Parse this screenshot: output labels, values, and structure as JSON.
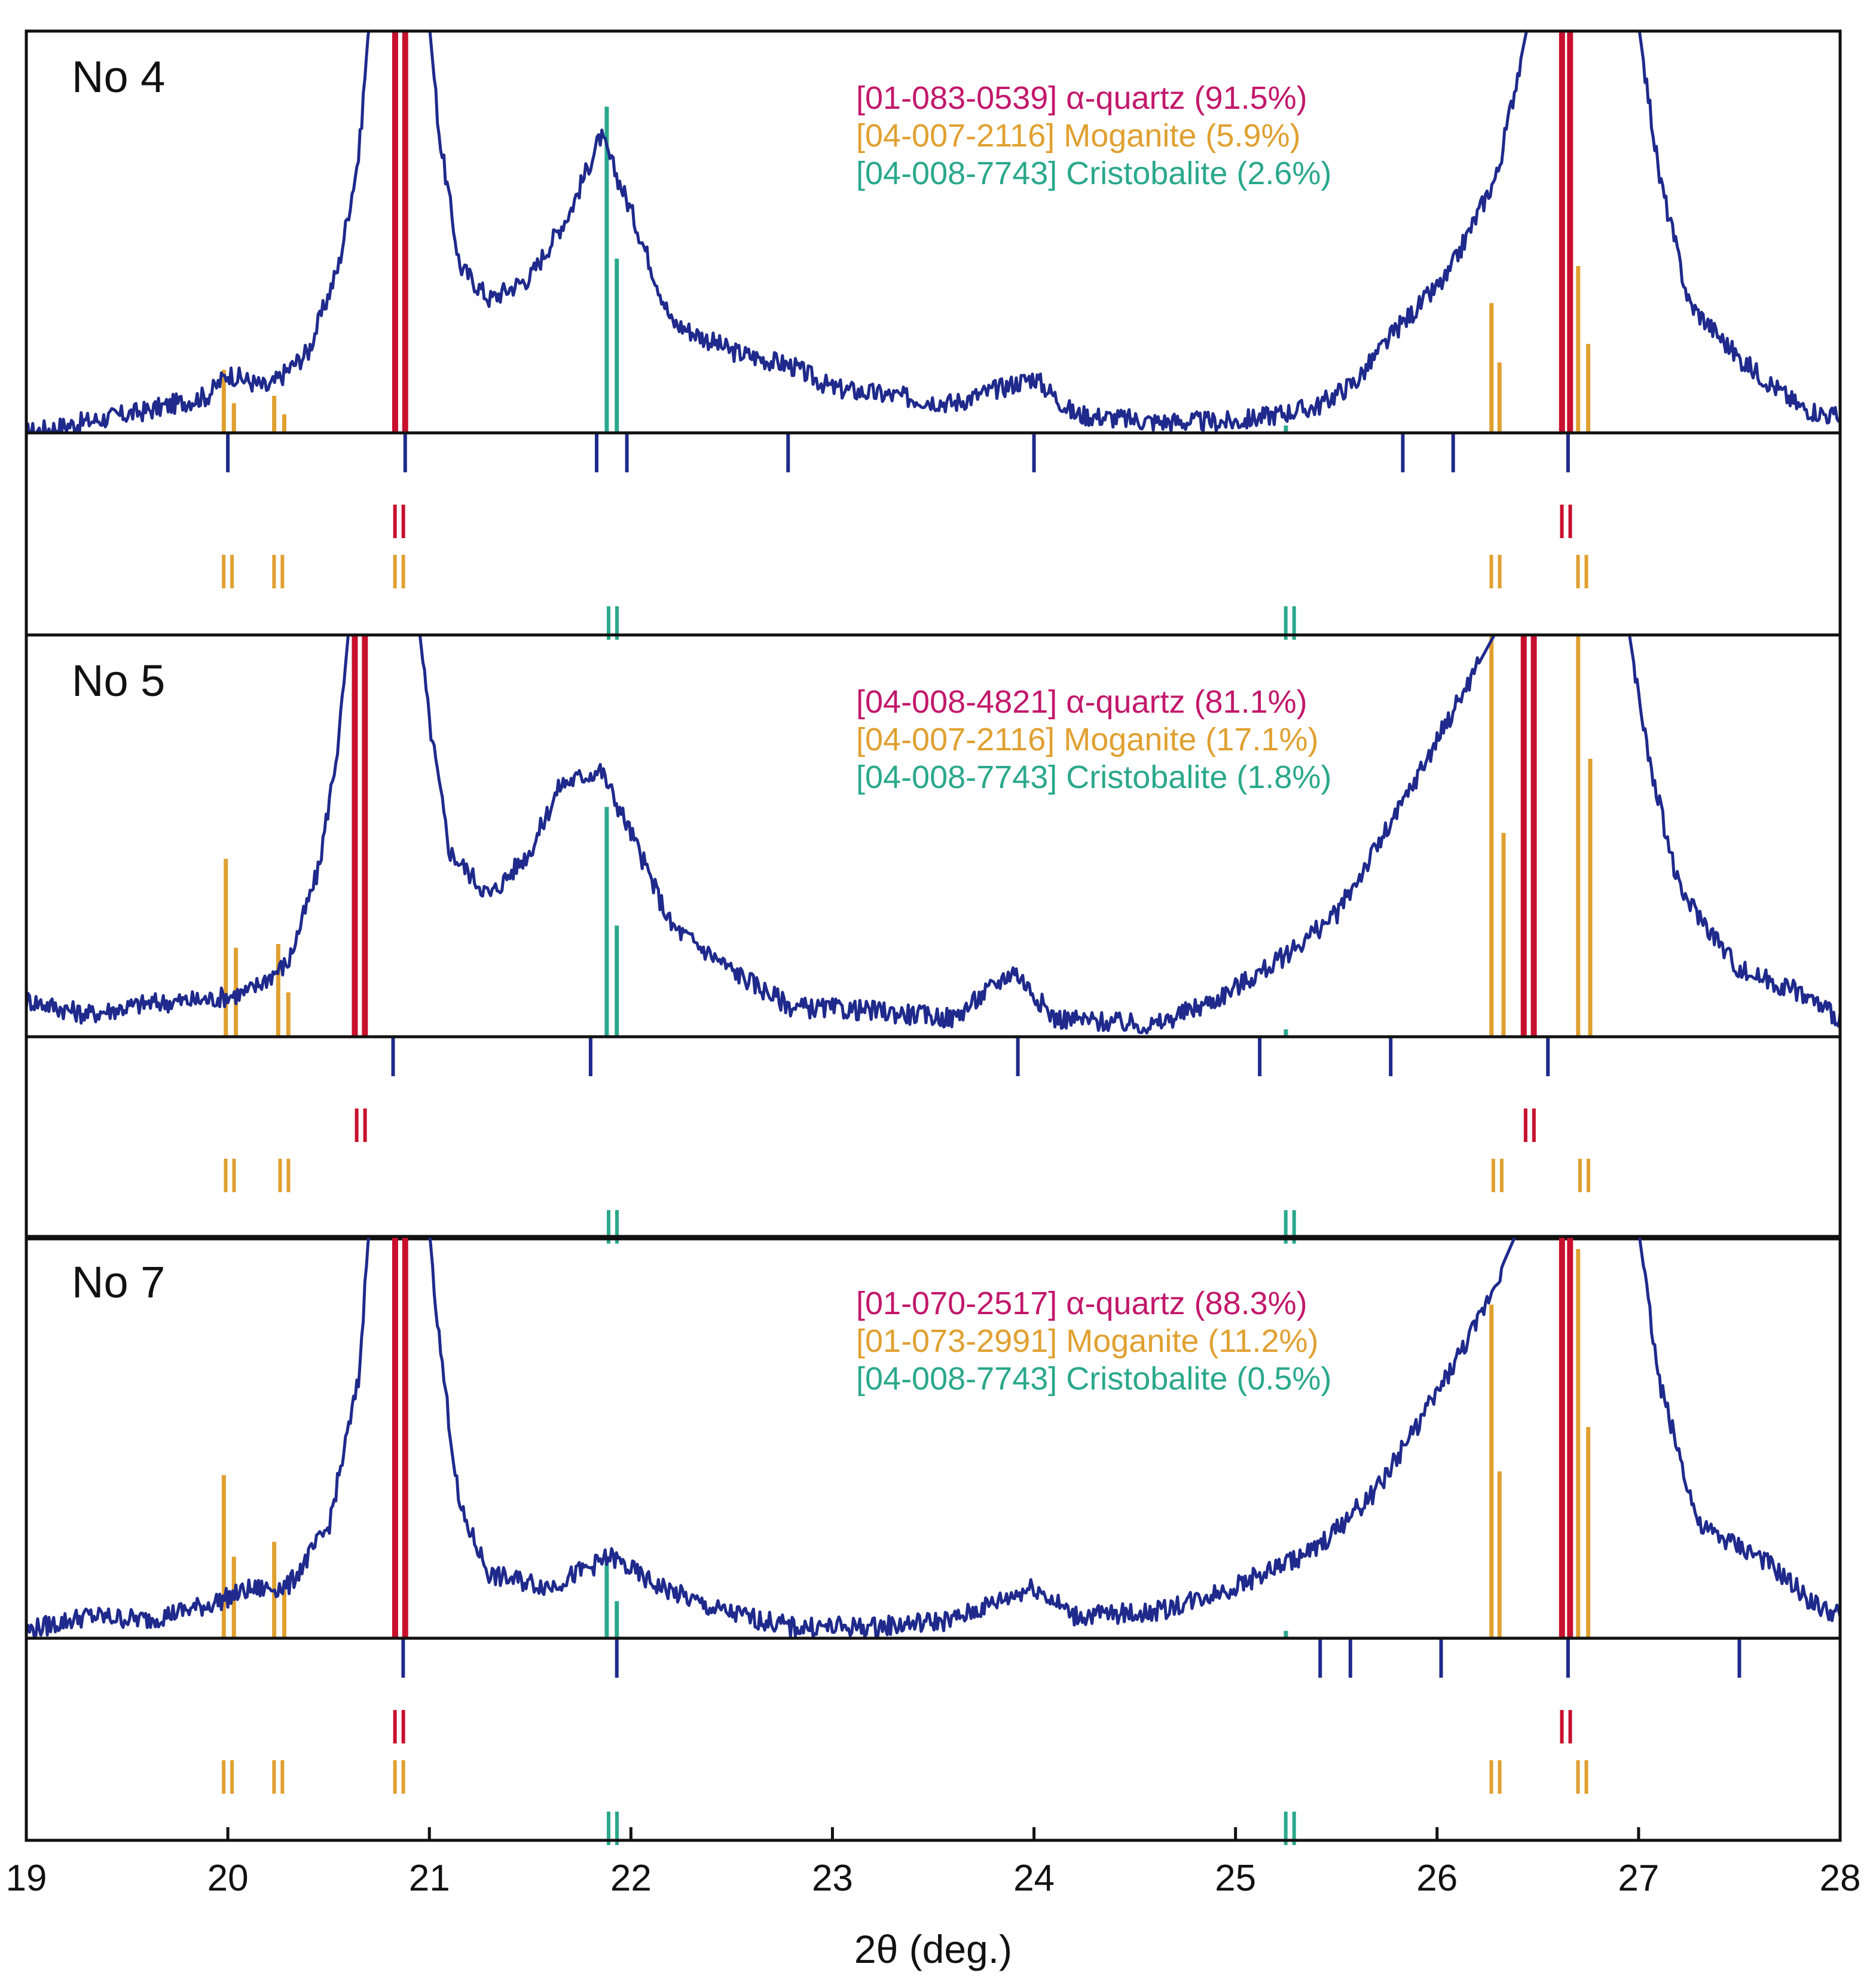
{
  "colors": {
    "pattern": "#1f2a8c",
    "quartz": "#c8102e",
    "quartz_label": "#c2186b",
    "moganite": "#e0a030",
    "cristobalite": "#2aa88c",
    "measured_marker": "#1f2a8c"
  },
  "chart_data": {
    "type": "line",
    "xlabel": "2θ (deg.)",
    "xlim": [
      19,
      28
    ],
    "x_ticks": [
      "19",
      "20",
      "21",
      "22",
      "23",
      "24",
      "25",
      "26",
      "27",
      "28"
    ],
    "grid": false,
    "panels": [
      {
        "name": "No 4",
        "legend": [
          {
            "text": "[01-083-0539] α-quartz (91.5%)",
            "phase": "quartz"
          },
          {
            "text": "[04-007-2116] Moganite (5.9%)",
            "phase": "moganite"
          },
          {
            "text": "[04-008-7743] Cristobalite (2.6%)",
            "phase": "cristobalite"
          }
        ],
        "profile": [
          [
            19,
            0.0
          ],
          [
            19.3,
            0.03
          ],
          [
            19.6,
            0.06
          ],
          [
            19.9,
            0.1
          ],
          [
            20.0,
            0.16
          ],
          [
            20.2,
            0.12
          ],
          [
            20.4,
            0.22
          ],
          [
            20.55,
            0.45
          ],
          [
            20.65,
            0.75
          ],
          [
            20.7,
            1.1
          ],
          [
            21.0,
            1.1
          ],
          [
            21.05,
            0.8
          ],
          [
            21.15,
            0.45
          ],
          [
            21.3,
            0.36
          ],
          [
            21.5,
            0.42
          ],
          [
            21.7,
            0.6
          ],
          [
            21.85,
            0.8
          ],
          [
            22.0,
            0.6
          ],
          [
            22.2,
            0.3
          ],
          [
            22.5,
            0.22
          ],
          [
            22.8,
            0.18
          ],
          [
            23.0,
            0.12
          ],
          [
            23.3,
            0.1
          ],
          [
            23.6,
            0.08
          ],
          [
            24.0,
            0.15
          ],
          [
            24.2,
            0.05
          ],
          [
            24.6,
            0.03
          ],
          [
            25.0,
            0.03
          ],
          [
            25.4,
            0.07
          ],
          [
            25.6,
            0.14
          ],
          [
            25.8,
            0.28
          ],
          [
            26.05,
            0.42
          ],
          [
            26.3,
            0.7
          ],
          [
            26.45,
            1.1
          ],
          [
            27.0,
            1.1
          ],
          [
            27.1,
            0.7
          ],
          [
            27.25,
            0.35
          ],
          [
            27.5,
            0.2
          ],
          [
            27.8,
            0.07
          ],
          [
            28.0,
            0.04
          ]
        ],
        "measured_peaks": [
          20.0,
          20.88,
          21.83,
          21.98,
          22.78,
          24.0,
          25.83,
          26.08,
          26.65
        ],
        "refs": {
          "quartz": {
            "lines": [
              [
                20.83,
                1.1
              ],
              [
                20.88,
                1.1
              ],
              [
                26.62,
                1.1
              ],
              [
                26.66,
                1.1
              ]
            ],
            "markers": [
              20.85,
              26.64
            ]
          },
          "moganite": {
            "lines": [
              [
                19.98,
                0.17
              ],
              [
                20.03,
                0.08
              ],
              [
                20.23,
                0.1
              ],
              [
                20.28,
                0.05
              ],
              [
                26.27,
                0.35
              ],
              [
                26.31,
                0.19
              ],
              [
                26.7,
                0.45
              ],
              [
                26.75,
                0.24
              ]
            ],
            "markers": [
              20.0,
              20.25,
              20.85,
              26.29,
              26.72
            ]
          },
          "cristobalite": {
            "lines": [
              [
                21.88,
                0.88
              ],
              [
                21.93,
                0.47
              ],
              [
                25.25,
                0.0
              ]
            ],
            "markers": [
              21.91,
              25.27
            ]
          }
        }
      },
      {
        "name": "No 5",
        "legend": [
          {
            "text": "[04-008-4821] α-quartz (81.1%)",
            "phase": "quartz"
          },
          {
            "text": "[04-007-2116] Moganite (17.1%)",
            "phase": "moganite"
          },
          {
            "text": "[04-008-7743] Cristobalite (1.8%)",
            "phase": "cristobalite"
          }
        ],
        "profile": [
          [
            19,
            0.1
          ],
          [
            19.3,
            0.06
          ],
          [
            19.6,
            0.09
          ],
          [
            19.9,
            0.1
          ],
          [
            20.1,
            0.12
          ],
          [
            20.3,
            0.2
          ],
          [
            20.45,
            0.45
          ],
          [
            20.55,
            0.8
          ],
          [
            20.6,
            1.1
          ],
          [
            20.95,
            1.1
          ],
          [
            21.0,
            0.85
          ],
          [
            21.1,
            0.5
          ],
          [
            21.3,
            0.38
          ],
          [
            21.5,
            0.5
          ],
          [
            21.65,
            0.68
          ],
          [
            21.85,
            0.72
          ],
          [
            22.0,
            0.55
          ],
          [
            22.2,
            0.3
          ],
          [
            22.5,
            0.18
          ],
          [
            22.8,
            0.08
          ],
          [
            23.2,
            0.07
          ],
          [
            23.6,
            0.05
          ],
          [
            23.9,
            0.18
          ],
          [
            24.1,
            0.05
          ],
          [
            24.6,
            0.03
          ],
          [
            24.9,
            0.1
          ],
          [
            25.2,
            0.2
          ],
          [
            25.5,
            0.33
          ],
          [
            25.8,
            0.6
          ],
          [
            26.05,
            0.85
          ],
          [
            26.3,
            1.1
          ],
          [
            26.95,
            1.1
          ],
          [
            27.05,
            0.75
          ],
          [
            27.2,
            0.4
          ],
          [
            27.5,
            0.18
          ],
          [
            27.8,
            0.12
          ],
          [
            28.0,
            0.05
          ]
        ],
        "measured_peaks": [
          20.82,
          21.8,
          23.92,
          25.12,
          25.77,
          26.55
        ],
        "refs": {
          "quartz": {
            "lines": [
              [
                20.63,
                1.1
              ],
              [
                20.68,
                1.1
              ],
              [
                26.43,
                1.1
              ],
              [
                26.48,
                1.1
              ]
            ],
            "markers": [
              20.66,
              26.46
            ]
          },
          "moganite": {
            "lines": [
              [
                19.99,
                0.48
              ],
              [
                20.04,
                0.24
              ],
              [
                20.25,
                0.25
              ],
              [
                20.3,
                0.12
              ],
              [
                26.27,
                1.1
              ],
              [
                26.33,
                0.55
              ],
              [
                26.7,
                1.1
              ],
              [
                26.76,
                0.75
              ]
            ],
            "markers": [
              20.01,
              20.28,
              26.3,
              26.73
            ]
          },
          "cristobalite": {
            "lines": [
              [
                21.88,
                0.62
              ],
              [
                21.93,
                0.3
              ],
              [
                25.25,
                0.0
              ]
            ],
            "markers": [
              21.91,
              25.27
            ]
          }
        }
      },
      {
        "name": "No 7",
        "legend": [
          {
            "text": "[01-070-2517] α-quartz (88.3%)",
            "phase": "quartz"
          },
          {
            "text": "[01-073-2991] Moganite (11.2%)",
            "phase": "moganite"
          },
          {
            "text": "[04-008-7743] Cristobalite (0.5%)",
            "phase": "cristobalite"
          }
        ],
        "profile": [
          [
            19,
            0.02
          ],
          [
            19.3,
            0.06
          ],
          [
            19.6,
            0.05
          ],
          [
            19.9,
            0.09
          ],
          [
            20.1,
            0.13
          ],
          [
            20.3,
            0.14
          ],
          [
            20.5,
            0.3
          ],
          [
            20.65,
            0.7
          ],
          [
            20.7,
            1.1
          ],
          [
            21.0,
            1.1
          ],
          [
            21.05,
            0.8
          ],
          [
            21.15,
            0.35
          ],
          [
            21.3,
            0.17
          ],
          [
            21.6,
            0.14
          ],
          [
            21.9,
            0.22
          ],
          [
            22.1,
            0.15
          ],
          [
            22.4,
            0.08
          ],
          [
            22.8,
            0.03
          ],
          [
            23.2,
            0.03
          ],
          [
            23.6,
            0.05
          ],
          [
            24.0,
            0.14
          ],
          [
            24.2,
            0.06
          ],
          [
            24.6,
            0.07
          ],
          [
            25.0,
            0.14
          ],
          [
            25.4,
            0.24
          ],
          [
            25.7,
            0.4
          ],
          [
            26.0,
            0.66
          ],
          [
            26.2,
            0.85
          ],
          [
            26.4,
            1.1
          ],
          [
            27.0,
            1.1
          ],
          [
            27.1,
            0.7
          ],
          [
            27.3,
            0.3
          ],
          [
            27.6,
            0.22
          ],
          [
            27.9,
            0.08
          ],
          [
            28.0,
            0.06
          ]
        ],
        "measured_peaks": [
          20.87,
          21.93,
          25.42,
          25.57,
          26.02,
          26.65,
          27.5
        ],
        "refs": {
          "quartz": {
            "lines": [
              [
                20.83,
                1.1
              ],
              [
                20.88,
                1.1
              ],
              [
                26.62,
                1.1
              ],
              [
                26.66,
                1.1
              ]
            ],
            "markers": [
              20.85,
              26.64
            ]
          },
          "moganite": {
            "lines": [
              [
                19.98,
                0.44
              ],
              [
                20.03,
                0.22
              ],
              [
                20.23,
                0.26
              ],
              [
                20.28,
                0.13
              ],
              [
                26.27,
                0.9
              ],
              [
                26.31,
                0.45
              ],
              [
                26.7,
                1.05
              ],
              [
                26.75,
                0.57
              ]
            ],
            "markers": [
              20.0,
              20.25,
              20.85,
              26.29,
              26.72
            ]
          },
          "cristobalite": {
            "lines": [
              [
                21.88,
                0.21
              ],
              [
                21.93,
                0.1
              ],
              [
                25.25,
                0.0
              ]
            ],
            "markers": [
              21.91,
              25.27
            ]
          }
        }
      }
    ]
  }
}
